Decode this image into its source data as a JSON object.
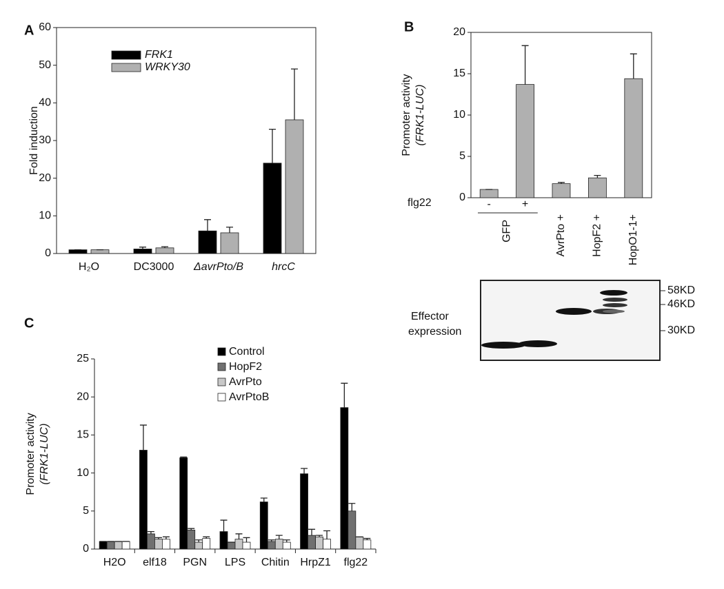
{
  "chart_data": [
    {
      "type": "bar",
      "panel": "A",
      "y_label": [
        "Fold induction"
      ],
      "categories": [
        "H₂O",
        "DC3000",
        "ΔavrPto/B",
        "hrcC"
      ],
      "italic_categories": [
        false,
        false,
        true,
        true
      ],
      "series": [
        {
          "name": "FRK1",
          "color": "#000000",
          "values": [
            1,
            1.2,
            6,
            24
          ],
          "errors": [
            0,
            0.5,
            3,
            9
          ]
        },
        {
          "name": "WRKY30",
          "color": "#b0b0b0",
          "values": [
            1,
            1.5,
            5.5,
            35.5
          ],
          "errors": [
            0,
            0.3,
            1.5,
            13.5
          ]
        }
      ],
      "legend": "upper left",
      "legend_italic": true,
      "box": true,
      "ylim": [
        0,
        60
      ],
      "yticks": [
        0,
        10,
        20,
        30,
        40,
        50,
        60
      ]
    },
    {
      "type": "bar",
      "panel": "B",
      "y_label": [
        "Promoter activity",
        "(FRK1-LUC)"
      ],
      "row_label": "flg22",
      "group": "GFP",
      "categories": [
        "-",
        "+",
        "AvrPto +",
        "HopF2 +",
        "HopO1-1+"
      ],
      "series": [
        {
          "color": "#b0b0b0",
          "values": [
            1,
            13.7,
            1.7,
            2.4,
            14.4
          ],
          "errors": [
            0,
            4.7,
            0.15,
            0.3,
            3
          ]
        }
      ],
      "box": true,
      "ylim": [
        0,
        20
      ],
      "yticks": [
        0,
        5,
        10,
        15,
        20
      ]
    },
    {
      "type": "bar",
      "panel": "C",
      "y_label": [
        "Promoter activity",
        "(FRK1-LUC)"
      ],
      "categories": [
        "H2O",
        "elf18",
        "PGN",
        "LPS",
        "Chitin",
        "HrpZ1",
        "flg22"
      ],
      "series": [
        {
          "name": "Control",
          "color": "#000000",
          "values": [
            1,
            13,
            12,
            2.3,
            6.2,
            9.9,
            18.6
          ],
          "errors": [
            0,
            3.3,
            0.1,
            1.5,
            0.5,
            0.7,
            3.2
          ]
        },
        {
          "name": "HopF2",
          "color": "#707070",
          "values": [
            1,
            2,
            2.5,
            0.9,
            1,
            1.8,
            5
          ],
          "errors": [
            0,
            0.3,
            0.2,
            0,
            0.2,
            0.8,
            1
          ]
        },
        {
          "name": "AvrPto",
          "color": "#c8c8c8",
          "values": [
            1,
            1.3,
            0.9,
            1.3,
            1.3,
            1.6,
            1.6
          ],
          "errors": [
            0,
            0.2,
            0.3,
            0.7,
            0.5,
            0.2,
            0
          ]
        },
        {
          "name": "AvrPtoB",
          "color": "#ffffff",
          "values": [
            1,
            1.3,
            1.4,
            0.9,
            0.9,
            1.3,
            1.2
          ],
          "errors": [
            0,
            0.3,
            0.2,
            0.6,
            0.3,
            1.1,
            0.2
          ]
        }
      ],
      "legend": "upper center",
      "box": false,
      "ylim": [
        0,
        25
      ],
      "yticks": [
        0,
        5,
        10,
        15,
        20,
        25
      ]
    }
  ],
  "blot": {
    "label": [
      "Effector",
      "expression"
    ],
    "markers": [
      "58KD",
      "46KD",
      "30KD"
    ]
  }
}
